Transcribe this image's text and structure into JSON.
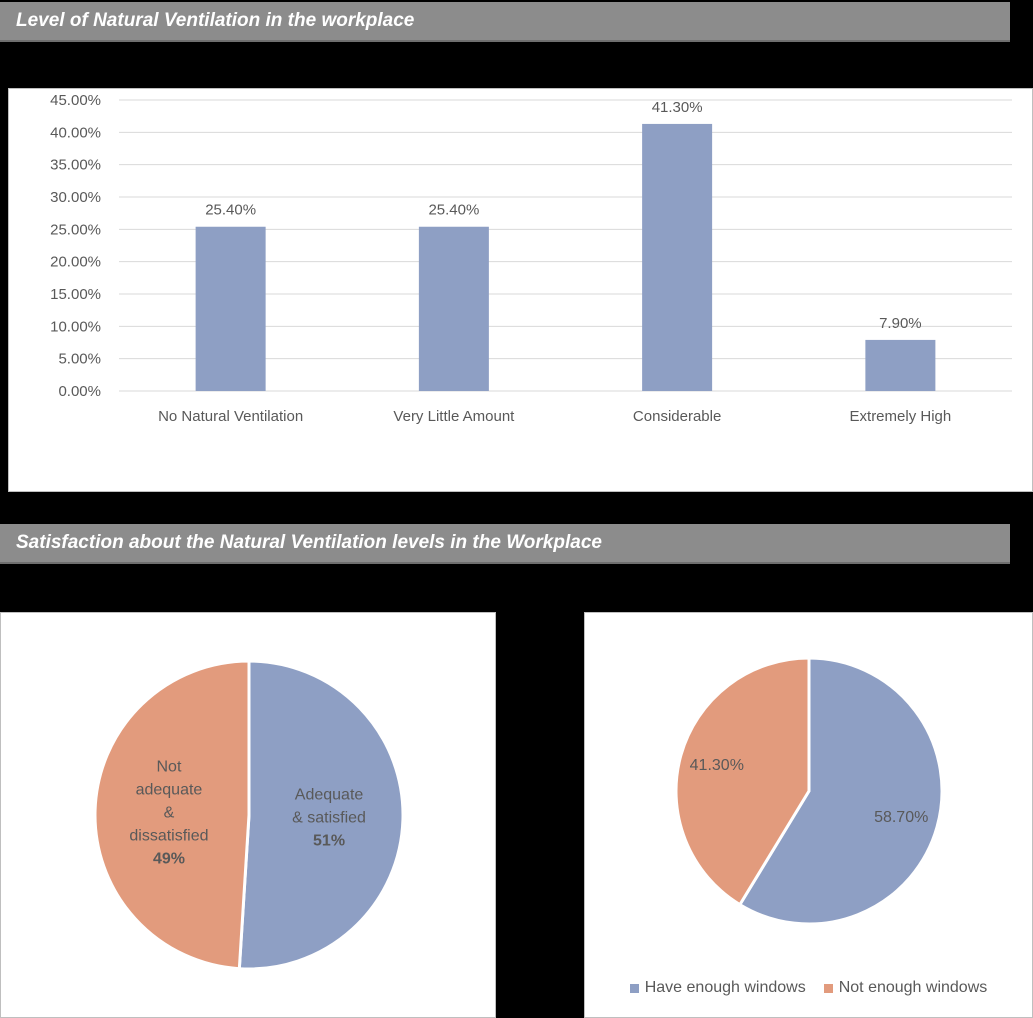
{
  "banners": {
    "chart1": "Level of Natural Ventilation in the workplace",
    "chart2": "Satisfaction about the Natural Ventilation levels  in the Workplace"
  },
  "colors": {
    "blue": "#8e9fc4",
    "orange": "#e29b7d",
    "grid": "#d9d9d9",
    "text": "#595959"
  },
  "chart_data": [
    {
      "type": "bar",
      "title": "",
      "categories": [
        "No Natural Ventilation",
        "Very Little Amount",
        "Considerable",
        "Extremely High"
      ],
      "values": [
        25.4,
        25.4,
        41.3,
        7.9
      ],
      "data_labels": [
        "25.40%",
        "25.40%",
        "41.30%",
        "7.90%"
      ],
      "ylim": [
        0,
        45
      ],
      "yticks": [
        "0.00%",
        "5.00%",
        "10.00%",
        "15.00%",
        "20.00%",
        "25.00%",
        "30.00%",
        "35.00%",
        "40.00%",
        "45.00%"
      ],
      "grid": true,
      "xlabel": "",
      "ylabel": ""
    },
    {
      "type": "pie",
      "slices": [
        {
          "name": "Adequate & satisfied",
          "value": 51,
          "label_lines": [
            "Adequate",
            "& satisfied"
          ],
          "pct": "51%",
          "color": "#8e9fc4"
        },
        {
          "name": "Not adequate & dissatisfied",
          "value": 49,
          "label_lines": [
            "Not",
            "adequate",
            "&",
            "dissatisfied"
          ],
          "pct": "49%",
          "color": "#e29b7d"
        }
      ]
    },
    {
      "type": "pie",
      "slices": [
        {
          "name": "Have enough windows",
          "value": 58.7,
          "pct": "58.70%",
          "color": "#8e9fc4"
        },
        {
          "name": "Not enough windows",
          "value": 41.3,
          "pct": "41.30%",
          "color": "#e29b7d"
        }
      ],
      "legend": "bottom"
    }
  ]
}
